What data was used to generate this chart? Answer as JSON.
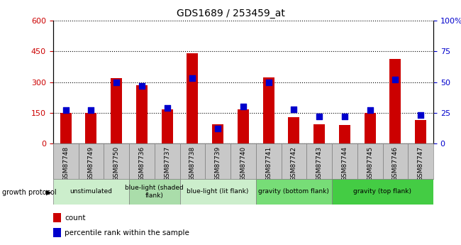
{
  "title": "GDS1689 / 253459_at",
  "samples": [
    "GSM87748",
    "GSM87749",
    "GSM87750",
    "GSM87736",
    "GSM87737",
    "GSM87738",
    "GSM87739",
    "GSM87740",
    "GSM87741",
    "GSM87742",
    "GSM87743",
    "GSM87744",
    "GSM87745",
    "GSM87746",
    "GSM87747"
  ],
  "counts": [
    148,
    148,
    320,
    285,
    168,
    440,
    95,
    168,
    322,
    128,
    95,
    90,
    148,
    415,
    115
  ],
  "percentiles": [
    27,
    27,
    50,
    47,
    29,
    53,
    12,
    30,
    50,
    28,
    22,
    22,
    27,
    52,
    23
  ],
  "groups": [
    {
      "label": "unstimulated",
      "start": 0,
      "end": 3,
      "color": "#cceecc"
    },
    {
      "label": "blue-light (shaded\nflank)",
      "start": 3,
      "end": 5,
      "color": "#aaddaa"
    },
    {
      "label": "blue-light (lit flank)",
      "start": 5,
      "end": 8,
      "color": "#cceecc"
    },
    {
      "label": "gravity (bottom flank)",
      "start": 8,
      "end": 11,
      "color": "#77dd77"
    },
    {
      "label": "gravity (top flank)",
      "start": 11,
      "end": 15,
      "color": "#44cc44"
    }
  ],
  "ylim_left": [
    0,
    600
  ],
  "ylim_right": [
    0,
    100
  ],
  "yticks_left": [
    0,
    150,
    300,
    450,
    600
  ],
  "yticks_right": [
    0,
    25,
    50,
    75,
    100
  ],
  "bar_color": "#cc0000",
  "dot_color": "#0000cc",
  "bar_width": 0.45,
  "dot_size": 35,
  "grid_color": "black",
  "sample_row_color": "#c8c8c8",
  "legend_items": [
    {
      "color": "#cc0000",
      "label": "count"
    },
    {
      "color": "#0000cc",
      "label": "percentile rank within the sample"
    }
  ]
}
